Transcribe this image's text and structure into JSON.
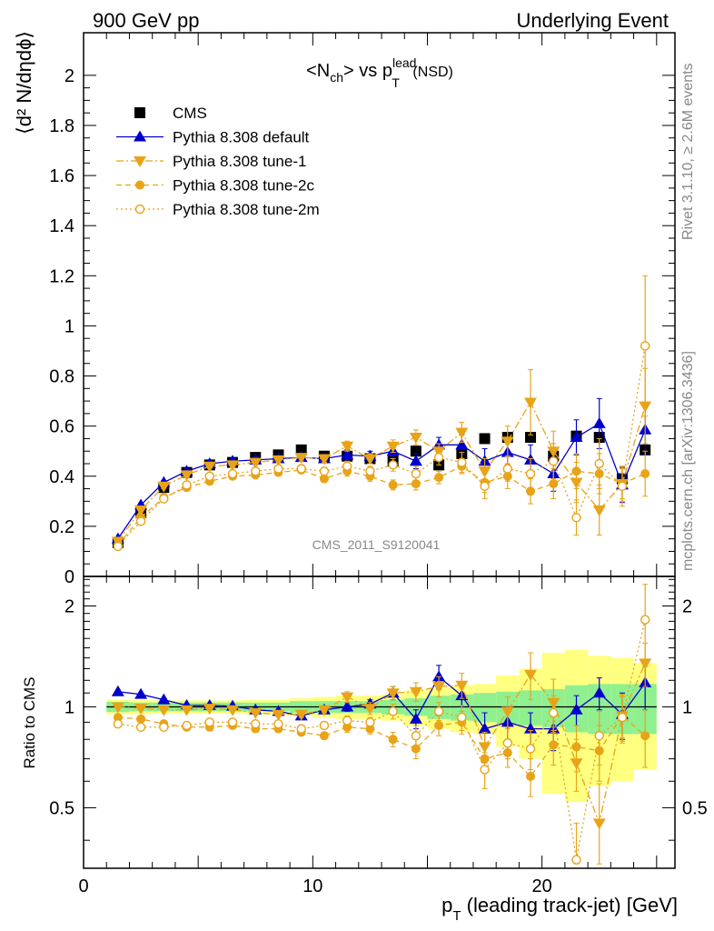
{
  "header": {
    "left": "900 GeV pp",
    "right": "Underlying Event"
  },
  "side_labels": {
    "rivet": "Rivet 3.1.10, ≥ 2.6M events",
    "mcplots": "mcplots.cern.ch [arXiv:1306.3436]"
  },
  "watermark": "CMS_2011_S9120041",
  "colors": {
    "cms": "#000000",
    "default": "#0000cc",
    "tune": "#e8a317",
    "band_inner": "#90f090",
    "band_outer": "#ffff80"
  },
  "chart_data": [
    {
      "type": "scatter",
      "title_parts": {
        "a": "<N",
        "a_sub": "ch",
        "b": "> vs p",
        "b_sub": "T",
        "b_sup": "lead",
        "c": " (NSD)"
      },
      "ylabel": "⟨d² N/dηdϕ⟩",
      "xlim": [
        0,
        25.8
      ],
      "ylim": [
        0,
        2.17
      ],
      "yticks": [
        {
          "v": 0,
          "l": "0"
        },
        {
          "v": 0.2,
          "l": "0.2"
        },
        {
          "v": 0.4,
          "l": "0.4"
        },
        {
          "v": 0.6,
          "l": "0.6"
        },
        {
          "v": 0.8,
          "l": "0.8"
        },
        {
          "v": 1,
          "l": "1"
        },
        {
          "v": 1.2,
          "l": "1.2"
        },
        {
          "v": 1.4,
          "l": "1.4"
        },
        {
          "v": 1.6,
          "l": "1.6"
        },
        {
          "v": 1.8,
          "l": "1.8"
        },
        {
          "v": 2,
          "l": "2"
        }
      ],
      "legend": [
        {
          "label": "CMS",
          "style": "cms"
        },
        {
          "label": "Pythia 8.308 default",
          "style": "default"
        },
        {
          "label": "Pythia 8.308 tune-1",
          "style": "tune1"
        },
        {
          "label": "Pythia 8.308 tune-2c",
          "style": "tune2c"
        },
        {
          "label": "Pythia 8.308 tune-2m",
          "style": "tune2m"
        }
      ],
      "x": [
        1.5,
        2.5,
        3.5,
        4.5,
        5.5,
        6.5,
        7.5,
        8.5,
        9.5,
        10.5,
        11.5,
        12.5,
        13.5,
        14.5,
        15.5,
        16.5,
        17.5,
        18.5,
        19.5,
        20.5,
        21.5,
        22.5,
        23.5,
        24.5
      ],
      "series": [
        {
          "name": "CMS",
          "style": "cms",
          "values": [
            0.135,
            0.255,
            0.355,
            0.415,
            0.445,
            0.455,
            0.475,
            0.485,
            0.505,
            0.48,
            0.48,
            0.47,
            0.46,
            0.5,
            0.445,
            0.49,
            0.55,
            0.555,
            0.555,
            0.48,
            0.56,
            0.555,
            0.39,
            0.505
          ],
          "errors": [
            0.01,
            0.01,
            0.01,
            0.01,
            0.01,
            0.01,
            0.01,
            0.01,
            0.01,
            0.01,
            0.01,
            0.01,
            0.01,
            0.01,
            0.01,
            0.01,
            0.01,
            0.01,
            0.01,
            0.01,
            0.01,
            0.01,
            0.01,
            0.01
          ]
        },
        {
          "name": "Pythia 8.308 default",
          "style": "default",
          "values": [
            0.15,
            0.285,
            0.375,
            0.42,
            0.45,
            0.46,
            0.465,
            0.47,
            0.475,
            0.47,
            0.485,
            0.48,
            0.5,
            0.46,
            0.525,
            0.525,
            0.46,
            0.495,
            0.465,
            0.41,
            0.555,
            0.61,
            0.365,
            0.585
          ],
          "errors": [
            0.005,
            0.007,
            0.008,
            0.008,
            0.008,
            0.01,
            0.01,
            0.012,
            0.015,
            0.015,
            0.02,
            0.02,
            0.025,
            0.03,
            0.03,
            0.04,
            0.05,
            0.05,
            0.06,
            0.07,
            0.07,
            0.1,
            0.07,
            0.1
          ]
        },
        {
          "name": "Pythia 8.308 tune-1",
          "style": "tune1",
          "values": [
            0.14,
            0.265,
            0.36,
            0.405,
            0.44,
            0.445,
            0.455,
            0.465,
            0.475,
            0.47,
            0.52,
            0.47,
            0.52,
            0.555,
            0.5,
            0.575,
            0.42,
            0.54,
            0.695,
            0.5,
            0.375,
            0.265,
            0.37,
            0.68
          ],
          "errors": [
            0.005,
            0.007,
            0.008,
            0.008,
            0.008,
            0.01,
            0.01,
            0.012,
            0.015,
            0.015,
            0.02,
            0.02,
            0.025,
            0.03,
            0.03,
            0.04,
            0.05,
            0.06,
            0.13,
            0.08,
            0.08,
            0.1,
            0.07,
            0.15
          ]
        },
        {
          "name": "Pythia 8.308 tune-2c",
          "style": "tune2c",
          "values": [
            0.125,
            0.235,
            0.315,
            0.355,
            0.38,
            0.4,
            0.405,
            0.415,
            0.425,
            0.39,
            0.42,
            0.4,
            0.365,
            0.37,
            0.395,
            0.44,
            0.375,
            0.4,
            0.34,
            0.37,
            0.42,
            0.41,
            0.37,
            0.41
          ],
          "errors": [
            0.005,
            0.007,
            0.008,
            0.008,
            0.008,
            0.01,
            0.01,
            0.012,
            0.015,
            0.015,
            0.02,
            0.02,
            0.02,
            0.025,
            0.025,
            0.03,
            0.04,
            0.05,
            0.05,
            0.06,
            0.07,
            0.08,
            0.06,
            0.09
          ]
        },
        {
          "name": "Pythia 8.308 tune-2m",
          "style": "tune2m",
          "values": [
            0.12,
            0.22,
            0.31,
            0.365,
            0.4,
            0.41,
            0.42,
            0.43,
            0.43,
            0.42,
            0.44,
            0.42,
            0.445,
            0.41,
            0.475,
            0.455,
            0.36,
            0.43,
            0.41,
            0.46,
            0.235,
            0.45,
            0.36,
            0.92
          ],
          "errors": [
            0.005,
            0.007,
            0.008,
            0.008,
            0.008,
            0.01,
            0.01,
            0.012,
            0.015,
            0.015,
            0.02,
            0.02,
            0.025,
            0.03,
            0.03,
            0.04,
            0.05,
            0.05,
            0.06,
            0.07,
            0.07,
            0.1,
            0.08,
            0.28
          ]
        }
      ]
    },
    {
      "type": "scatter",
      "ylabel": "Ratio to CMS",
      "xlabel": "p_T (leading track-jet) [GeV]",
      "xlabel_parts": {
        "p": "p",
        "sub": "T",
        "rest": " (leading track-jet) [GeV]"
      },
      "xlim": [
        0,
        25.8
      ],
      "ylim": [
        0.33,
        2.45
      ],
      "xticks": [
        {
          "v": 0,
          "l": "0"
        },
        {
          "v": 10,
          "l": "10"
        },
        {
          "v": 20,
          "l": "20"
        }
      ],
      "yticks": [
        {
          "v": 0.5,
          "l": "0.5"
        },
        {
          "v": 1,
          "l": "1"
        },
        {
          "v": 2,
          "l": "2"
        }
      ],
      "x": [
        1.5,
        2.5,
        3.5,
        4.5,
        5.5,
        6.5,
        7.5,
        8.5,
        9.5,
        10.5,
        11.5,
        12.5,
        13.5,
        14.5,
        15.5,
        16.5,
        17.5,
        18.5,
        19.5,
        20.5,
        21.5,
        22.5,
        23.5,
        24.5
      ],
      "band_inner": [
        0.035,
        0.03,
        0.03,
        0.03,
        0.03,
        0.03,
        0.03,
        0.03,
        0.04,
        0.04,
        0.04,
        0.04,
        0.05,
        0.06,
        0.08,
        0.09,
        0.1,
        0.11,
        0.12,
        0.13,
        0.16,
        0.17,
        0.17,
        0.17
      ],
      "band_outer": [
        0.05,
        0.05,
        0.045,
        0.045,
        0.045,
        0.045,
        0.05,
        0.05,
        0.06,
        0.07,
        0.08,
        0.08,
        0.09,
        0.12,
        0.14,
        0.16,
        0.17,
        0.24,
        0.3,
        0.45,
        0.48,
        0.42,
        0.4,
        0.35
      ],
      "series": [
        {
          "name": "Pythia 8.308 default",
          "style": "default",
          "values": [
            1.11,
            1.09,
            1.05,
            1.01,
            1.01,
            1.005,
            0.98,
            0.97,
            0.94,
            0.98,
            1.0,
            1.02,
            1.1,
            0.92,
            1.23,
            1.08,
            0.86,
            0.9,
            0.86,
            0.86,
            0.98,
            1.1,
            0.95,
            1.18
          ],
          "errors": [
            0.01,
            0.01,
            0.01,
            0.01,
            0.01,
            0.01,
            0.01,
            0.015,
            0.02,
            0.02,
            0.03,
            0.03,
            0.05,
            0.06,
            0.1,
            0.08,
            0.1,
            0.1,
            0.1,
            0.12,
            0.1,
            0.12,
            0.15,
            0.2
          ]
        },
        {
          "name": "Pythia 8.308 tune-1",
          "style": "tune1",
          "values": [
            1.0,
            0.99,
            0.98,
            0.98,
            0.99,
            0.98,
            0.96,
            0.95,
            0.95,
            0.98,
            1.07,
            0.99,
            1.1,
            1.11,
            1.15,
            1.16,
            0.76,
            0.97,
            1.25,
            1.03,
            0.68,
            0.45,
            0.94,
            1.35
          ],
          "errors": [
            0.01,
            0.01,
            0.01,
            0.01,
            0.01,
            0.01,
            0.01,
            0.015,
            0.02,
            0.02,
            0.04,
            0.04,
            0.05,
            0.07,
            0.08,
            0.1,
            0.08,
            0.1,
            0.2,
            0.18,
            0.12,
            0.14,
            0.15,
            0.2
          ]
        },
        {
          "name": "Pythia 8.308 tune-2c",
          "style": "tune2c",
          "values": [
            0.93,
            0.92,
            0.89,
            0.87,
            0.87,
            0.88,
            0.86,
            0.86,
            0.84,
            0.82,
            0.87,
            0.86,
            0.8,
            0.75,
            0.88,
            0.9,
            0.7,
            0.73,
            0.62,
            0.77,
            0.76,
            0.74,
            0.94,
            0.82
          ],
          "errors": [
            0.01,
            0.01,
            0.01,
            0.01,
            0.01,
            0.01,
            0.01,
            0.015,
            0.02,
            0.02,
            0.03,
            0.03,
            0.04,
            0.05,
            0.06,
            0.07,
            0.06,
            0.07,
            0.08,
            0.1,
            0.12,
            0.14,
            0.13,
            0.16
          ]
        },
        {
          "name": "Pythia 8.308 tune-2m",
          "style": "tune2m",
          "values": [
            0.89,
            0.87,
            0.87,
            0.88,
            0.9,
            0.9,
            0.89,
            0.89,
            0.86,
            0.88,
            0.91,
            0.9,
            0.97,
            0.82,
            0.97,
            0.93,
            0.65,
            0.78,
            0.75,
            0.96,
            0.35,
            0.82,
            0.93,
            1.82
          ],
          "errors": [
            0.01,
            0.01,
            0.01,
            0.01,
            0.01,
            0.01,
            0.01,
            0.015,
            0.02,
            0.02,
            0.03,
            0.03,
            0.05,
            0.06,
            0.06,
            0.08,
            0.08,
            0.08,
            0.1,
            0.12,
            0.1,
            0.15,
            0.15,
            0.5
          ]
        }
      ]
    }
  ]
}
